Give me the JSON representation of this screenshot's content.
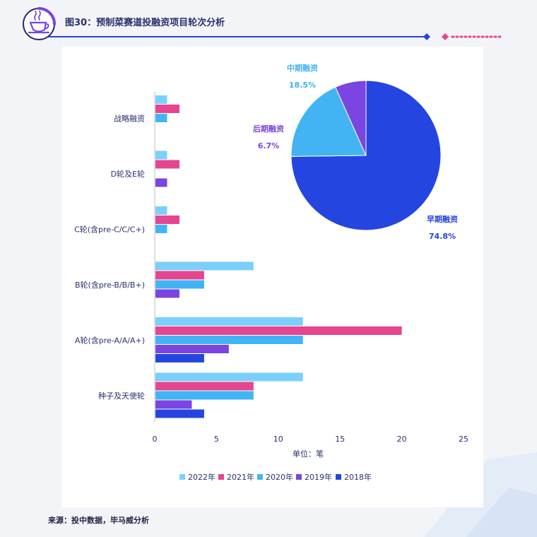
{
  "header": {
    "title": "图30：预制菜赛道投融资项目轮次分析"
  },
  "footer": {
    "source": "来源：投中数据，毕马威分析"
  },
  "colors": {
    "primary": "#2545e0",
    "accent_pink": "#e6458f",
    "dark_navy": "#2a2f6b"
  },
  "chart_data": [
    {
      "type": "bar",
      "orientation": "horizontal",
      "categories": [
        "战略融资",
        "D轮及E轮",
        "C轮(含pre-C/C/C+)",
        "B轮(含pre-B/B/B+)",
        "A轮(含pre-A/A/A+)",
        "种子及天使轮"
      ],
      "series": [
        {
          "name": "2022年",
          "color": "#7ad0fa",
          "values": [
            1,
            1,
            1,
            8,
            12,
            12
          ]
        },
        {
          "name": "2021年",
          "color": "#e6458f",
          "values": [
            2,
            2,
            2,
            4,
            20,
            8
          ]
        },
        {
          "name": "2020年",
          "color": "#42b4f4",
          "values": [
            1,
            0,
            1,
            4,
            12,
            8
          ]
        },
        {
          "name": "2019年",
          "color": "#7a45e0",
          "values": [
            0,
            1,
            0,
            2,
            6,
            3
          ]
        },
        {
          "name": "2018年",
          "color": "#2545e0",
          "values": [
            0,
            0,
            0,
            0,
            4,
            4
          ]
        }
      ],
      "xlim": [
        0,
        25
      ],
      "xticks": [
        "0",
        "5",
        "10",
        "15",
        "20",
        "25"
      ],
      "xlabel": "单位：笔",
      "legend": "bottom",
      "grid": false
    },
    {
      "type": "pie",
      "slices": [
        {
          "label": "早期融资",
          "value": 74.8,
          "display": "74.8%",
          "color": "#2545e0"
        },
        {
          "label": "中期融资",
          "value": 18.5,
          "display": "18.5%",
          "color": "#42b4f4"
        },
        {
          "label": "后期融资",
          "value": 6.7,
          "display": "6.7%",
          "color": "#7a45e0"
        }
      ]
    }
  ]
}
